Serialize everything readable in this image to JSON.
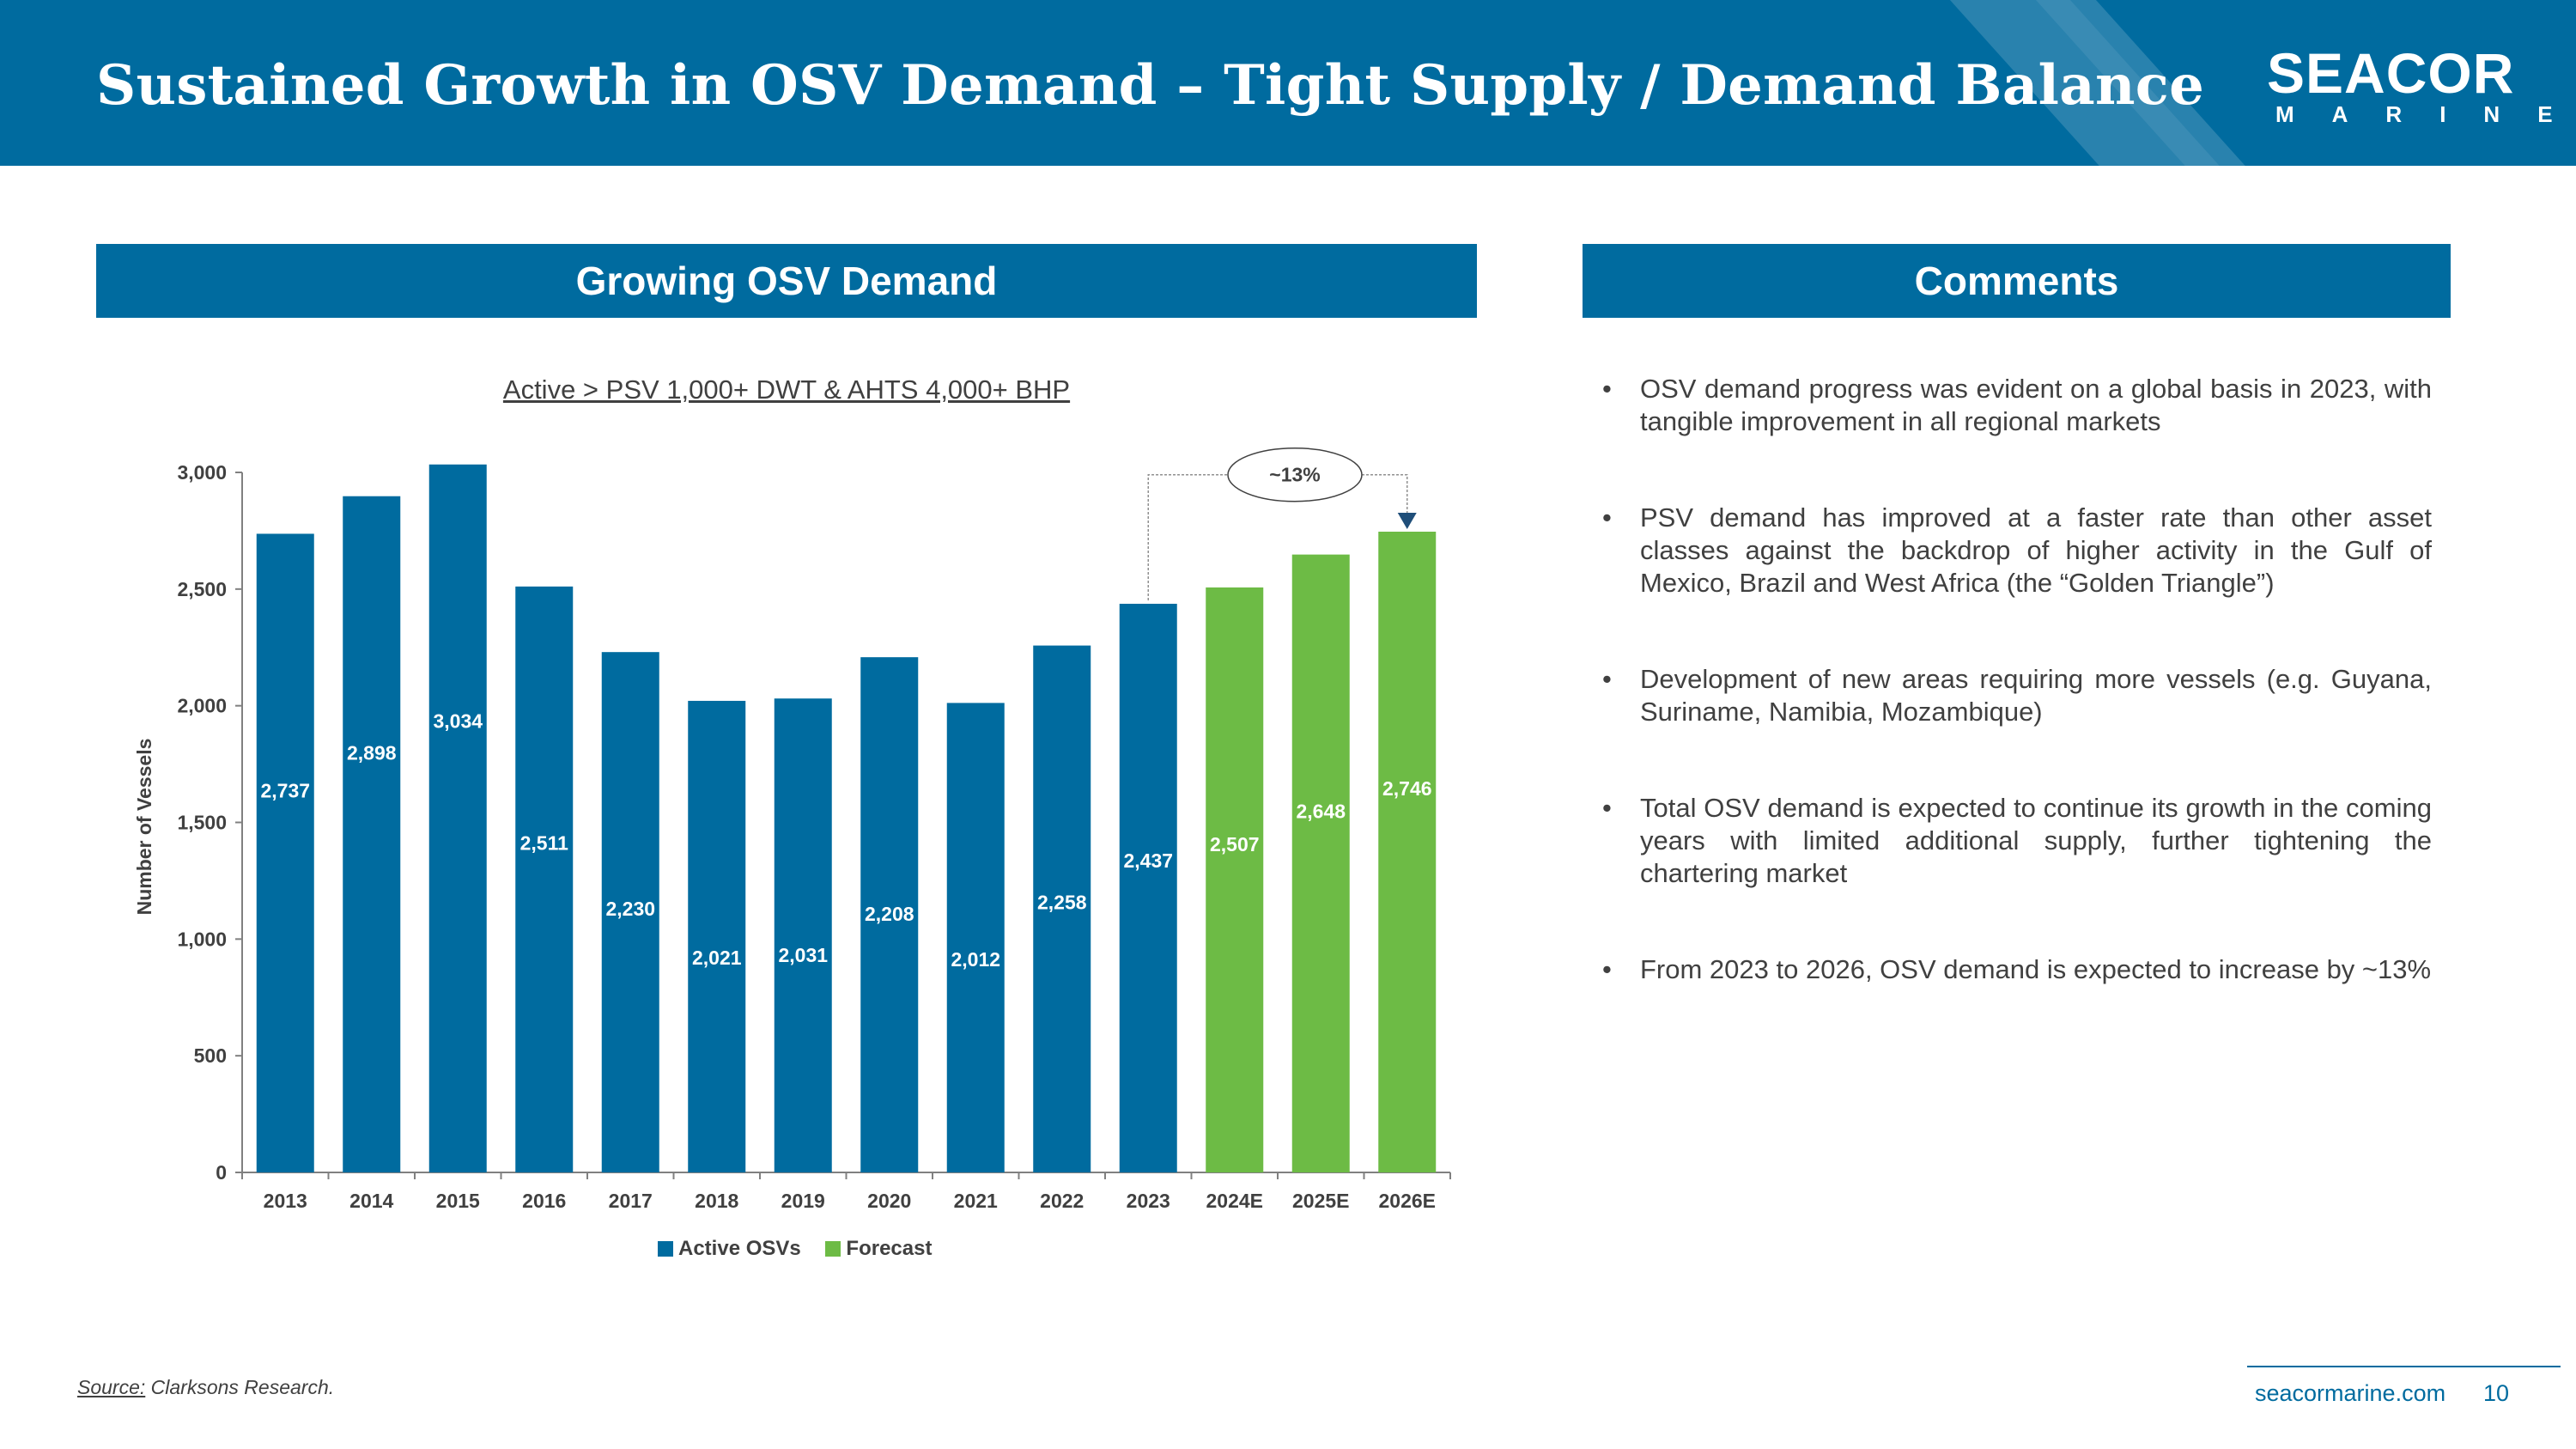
{
  "header": {
    "title": "Sustained Growth in OSV Demand – Tight Supply / Demand Balance",
    "logo_main": "SEACOR",
    "logo_sub": "MARINE"
  },
  "left_section": {
    "title": "Growing OSV Demand",
    "subtitle": "Active > PSV 1,000+ DWT & AHTS 4,000+ BHP"
  },
  "right_section": {
    "title": "Comments",
    "bullets": [
      "OSV demand progress was evident on a global basis in 2023, with tangible improvement in all regional markets",
      "PSV demand has improved at a faster rate than other asset classes against the backdrop of higher activity in the Gulf of Mexico, Brazil and West Africa (the “Golden Triangle”)",
      "Development of new areas requiring more vessels (e.g. Guyana, Suriname, Namibia, Mozambique)",
      "Total OSV demand is expected to continue its growth in the coming years with limited additional supply, further tightening the chartering market",
      "From 2023 to 2026, OSV demand is expected to increase by ~13%"
    ],
    "bullet_char": "•"
  },
  "chart_data": {
    "type": "bar",
    "title": "Active > PSV 1,000+ DWT & AHTS 4,000+ BHP",
    "xlabel": "",
    "ylabel": "Number of Vessels",
    "ylim": [
      0,
      3000
    ],
    "yticks": [
      0,
      500,
      1000,
      1500,
      2000,
      2500,
      3000
    ],
    "ytick_labels": [
      "0",
      "500",
      "1,000",
      "1,500",
      "2,000",
      "2,500",
      "3,000"
    ],
    "categories": [
      "2013",
      "2014",
      "2015",
      "2016",
      "2017",
      "2018",
      "2019",
      "2020",
      "2021",
      "2022",
      "2023",
      "2024E",
      "2025E",
      "2026E"
    ],
    "values": [
      2737,
      2898,
      3034,
      2511,
      2230,
      2021,
      2031,
      2208,
      2012,
      2258,
      2437,
      2507,
      2648,
      2746
    ],
    "value_labels": [
      "2,737",
      "2,898",
      "3,034",
      "2,511",
      "2,230",
      "2,021",
      "2,031",
      "2,208",
      "2,012",
      "2,258",
      "2,437",
      "2,507",
      "2,648",
      "2,746"
    ],
    "series_index": [
      0,
      0,
      0,
      0,
      0,
      0,
      0,
      0,
      0,
      0,
      0,
      1,
      1,
      1
    ],
    "series": [
      {
        "name": "Active OSVs",
        "color": "#006b9f"
      },
      {
        "name": "Forecast",
        "color": "#6dbb45"
      }
    ],
    "annotation": {
      "text": "~13%",
      "from_category": "2023",
      "to_category": "2026E"
    },
    "legend_position": "bottom"
  },
  "footer": {
    "source_label": "Source:",
    "source_text": "Clarksons Research.",
    "url": "seacormarine.com",
    "page_number": "10"
  }
}
